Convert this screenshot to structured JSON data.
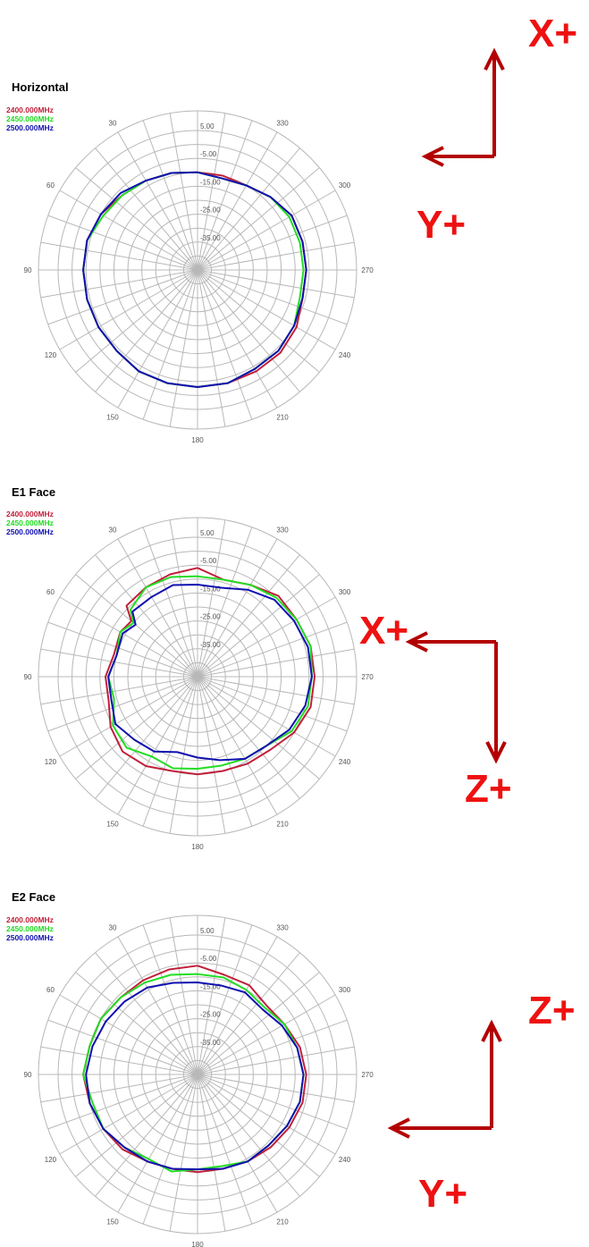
{
  "colors": {
    "series1": "#c0203a",
    "series2": "#22dd22",
    "series3": "#1010b0",
    "arrow": "#b30000",
    "axis_text": "#ee1111",
    "grid": "#b8b8b8"
  },
  "chart_data": [
    {
      "type": "polar-line",
      "title": "Horizontal",
      "angle_ticks": [
        "30",
        "60",
        "90",
        "120",
        "150",
        "180",
        "210",
        "240",
        "270",
        "300",
        "330"
      ],
      "radial_ticks": [
        "5.00",
        "-5.00",
        "-15.00",
        "-25.00",
        "-35.00"
      ],
      "rlim": [
        -45,
        5
      ],
      "grid": true,
      "legend_placement": "top-left",
      "series": [
        {
          "name": "2400.000MHz",
          "points": [
            [
              0,
              -10
            ],
            [
              15,
              -9
            ],
            [
              30,
              -8
            ],
            [
              45,
              -7
            ],
            [
              60,
              -5
            ],
            [
              75,
              -4
            ],
            [
              90,
              -4
            ],
            [
              105,
              -4
            ],
            [
              120,
              -4
            ],
            [
              135,
              -4
            ],
            [
              150,
              -3
            ],
            [
              165,
              -3
            ],
            [
              180,
              -3
            ],
            [
              195,
              -3
            ],
            [
              210,
              -3
            ],
            [
              225,
              -3
            ],
            [
              240,
              -4
            ],
            [
              255,
              -6
            ],
            [
              270,
              -6
            ],
            [
              285,
              -6
            ],
            [
              300,
              -6
            ],
            [
              315,
              -8
            ],
            [
              330,
              -10
            ],
            [
              345,
              -10
            ]
          ]
        },
        {
          "name": "2450.000MHz",
          "points": [
            [
              0,
              -10
            ],
            [
              15,
              -9
            ],
            [
              30,
              -8
            ],
            [
              45,
              -7
            ],
            [
              60,
              -6
            ],
            [
              75,
              -4
            ],
            [
              90,
              -4
            ],
            [
              105,
              -4
            ],
            [
              120,
              -4
            ],
            [
              135,
              -4
            ],
            [
              150,
              -3
            ],
            [
              165,
              -3
            ],
            [
              180,
              -3
            ],
            [
              195,
              -3
            ],
            [
              210,
              -4
            ],
            [
              225,
              -4
            ],
            [
              240,
              -5
            ],
            [
              255,
              -7
            ],
            [
              270,
              -7
            ],
            [
              285,
              -7
            ],
            [
              300,
              -7
            ],
            [
              315,
              -8
            ],
            [
              330,
              -10
            ],
            [
              345,
              -11
            ]
          ]
        },
        {
          "name": "2500.000MHz",
          "points": [
            [
              0,
              -10
            ],
            [
              15,
              -9
            ],
            [
              30,
              -8
            ],
            [
              45,
              -6
            ],
            [
              60,
              -5
            ],
            [
              75,
              -4
            ],
            [
              90,
              -4
            ],
            [
              105,
              -4
            ],
            [
              120,
              -4
            ],
            [
              135,
              -4
            ],
            [
              150,
              -3
            ],
            [
              165,
              -3
            ],
            [
              180,
              -3
            ],
            [
              195,
              -3
            ],
            [
              210,
              -4
            ],
            [
              225,
              -4
            ],
            [
              240,
              -5
            ],
            [
              255,
              -6
            ],
            [
              270,
              -6
            ],
            [
              285,
              -6
            ],
            [
              300,
              -6
            ],
            [
              315,
              -8
            ],
            [
              330,
              -10
            ],
            [
              345,
              -11
            ]
          ]
        }
      ]
    },
    {
      "type": "polar-line",
      "title": "E1 Face",
      "angle_ticks": [
        "30",
        "60",
        "90",
        "120",
        "150",
        "180",
        "210",
        "240",
        "270",
        "300",
        "330"
      ],
      "radial_ticks": [
        "5.00",
        "-5.00",
        "-15.00",
        "-25.00",
        "-35.00"
      ],
      "rlim": [
        -45,
        5
      ],
      "grid": true,
      "legend_placement": "top-left",
      "series": [
        {
          "name": "2400.000MHz",
          "points": [
            [
              0,
              -6
            ],
            [
              15,
              -7
            ],
            [
              30,
              -8
            ],
            [
              45,
              -9
            ],
            [
              50,
              -14
            ],
            [
              60,
              -13
            ],
            [
              75,
              -14
            ],
            [
              90,
              -12
            ],
            [
              105,
              -12
            ],
            [
              120,
              -9
            ],
            [
              135,
              -7
            ],
            [
              150,
              -8
            ],
            [
              165,
              -10
            ],
            [
              180,
              -10
            ],
            [
              195,
              -10
            ],
            [
              210,
              -9
            ],
            [
              225,
              -8
            ],
            [
              240,
              -5
            ],
            [
              255,
              -3
            ],
            [
              270,
              -3
            ],
            [
              285,
              -3
            ],
            [
              300,
              -4
            ],
            [
              315,
              -4
            ],
            [
              330,
              -7
            ],
            [
              345,
              -9
            ]
          ]
        },
        {
          "name": "2450.000MHz",
          "points": [
            [
              0,
              -9
            ],
            [
              15,
              -8
            ],
            [
              30,
              -8
            ],
            [
              45,
              -11
            ],
            [
              50,
              -15
            ],
            [
              60,
              -13
            ],
            [
              75,
              -15
            ],
            [
              90,
              -13
            ],
            [
              105,
              -14
            ],
            [
              120,
              -10
            ],
            [
              135,
              -9
            ],
            [
              150,
              -12
            ],
            [
              165,
              -11
            ],
            [
              180,
              -12
            ],
            [
              195,
              -12
            ],
            [
              210,
              -11
            ],
            [
              225,
              -10
            ],
            [
              240,
              -6
            ],
            [
              255,
              -4
            ],
            [
              270,
              -4
            ],
            [
              285,
              -3
            ],
            [
              300,
              -4
            ],
            [
              315,
              -5
            ],
            [
              330,
              -7
            ],
            [
              345,
              -9
            ]
          ]
        },
        {
          "name": "2500.000MHz",
          "points": [
            [
              0,
              -12
            ],
            [
              15,
              -11
            ],
            [
              30,
              -12
            ],
            [
              45,
              -12
            ],
            [
              50,
              -16
            ],
            [
              60,
              -14
            ],
            [
              75,
              -15
            ],
            [
              90,
              -13
            ],
            [
              105,
              -13
            ],
            [
              120,
              -11
            ],
            [
              135,
              -13
            ],
            [
              150,
              -14
            ],
            [
              165,
              -17
            ],
            [
              180,
              -16
            ],
            [
              195,
              -14
            ],
            [
              210,
              -11
            ],
            [
              225,
              -10
            ],
            [
              240,
              -7
            ],
            [
              255,
              -5
            ],
            [
              270,
              -4
            ],
            [
              285,
              -4
            ],
            [
              300,
              -5
            ],
            [
              315,
              -6
            ],
            [
              330,
              -9
            ],
            [
              345,
              -12
            ]
          ]
        }
      ]
    },
    {
      "type": "polar-line",
      "title": "E2 Face",
      "angle_ticks": [
        "30",
        "60",
        "90",
        "120",
        "150",
        "180",
        "210",
        "240",
        "270",
        "300",
        "330"
      ],
      "radial_ticks": [
        "5.00",
        "-5.00",
        "-15.00",
        "-25.00",
        "-35.00"
      ],
      "rlim": [
        -45,
        5
      ],
      "grid": true,
      "legend_placement": "top-left",
      "series": [
        {
          "name": "2400.000MHz",
          "points": [
            [
              0,
              -6
            ],
            [
              15,
              -6
            ],
            [
              30,
              -6
            ],
            [
              45,
              -6
            ],
            [
              60,
              -5
            ],
            [
              75,
              -5
            ],
            [
              90,
              -4
            ],
            [
              105,
              -5
            ],
            [
              120,
              -6
            ],
            [
              135,
              -7
            ],
            [
              150,
              -9
            ],
            [
              165,
              -10
            ],
            [
              180,
              -10
            ],
            [
              195,
              -10
            ],
            [
              210,
              -9
            ],
            [
              225,
              -8
            ],
            [
              240,
              -7
            ],
            [
              255,
              -6
            ],
            [
              270,
              -6
            ],
            [
              285,
              -7
            ],
            [
              300,
              -9
            ],
            [
              315,
              -10
            ],
            [
              330,
              -8
            ],
            [
              345,
              -8
            ]
          ]
        },
        {
          "name": "2450.000MHz",
          "points": [
            [
              0,
              -9
            ],
            [
              15,
              -8
            ],
            [
              30,
              -7
            ],
            [
              45,
              -6
            ],
            [
              60,
              -5
            ],
            [
              75,
              -5
            ],
            [
              90,
              -4
            ],
            [
              105,
              -6
            ],
            [
              120,
              -6
            ],
            [
              135,
              -8
            ],
            [
              150,
              -10
            ],
            [
              165,
              -9
            ],
            [
              180,
              -11
            ],
            [
              195,
              -11
            ],
            [
              210,
              -9
            ],
            [
              225,
              -9
            ],
            [
              240,
              -8
            ],
            [
              255,
              -7
            ],
            [
              270,
              -7
            ],
            [
              285,
              -8
            ],
            [
              300,
              -9
            ],
            [
              315,
              -11
            ],
            [
              330,
              -10
            ],
            [
              345,
              -9
            ]
          ]
        },
        {
          "name": "2500.000MHz",
          "points": [
            [
              0,
              -12
            ],
            [
              15,
              -11
            ],
            [
              30,
              -9
            ],
            [
              45,
              -8
            ],
            [
              60,
              -7
            ],
            [
              75,
              -6
            ],
            [
              90,
              -5
            ],
            [
              105,
              -5
            ],
            [
              120,
              -6
            ],
            [
              135,
              -8
            ],
            [
              150,
              -9
            ],
            [
              165,
              -10
            ],
            [
              180,
              -11
            ],
            [
              195,
              -10
            ],
            [
              210,
              -9
            ],
            [
              225,
              -9
            ],
            [
              240,
              -8
            ],
            [
              255,
              -7
            ],
            [
              270,
              -7
            ],
            [
              285,
              -8
            ],
            [
              300,
              -10
            ],
            [
              315,
              -12
            ],
            [
              330,
              -11
            ],
            [
              345,
              -12
            ]
          ]
        }
      ]
    }
  ],
  "axis_labels": [
    {
      "up": "X+",
      "left": "Y+"
    },
    {
      "left": "X+",
      "down": "Z+"
    },
    {
      "up": "Z+",
      "left": "Y+"
    }
  ]
}
